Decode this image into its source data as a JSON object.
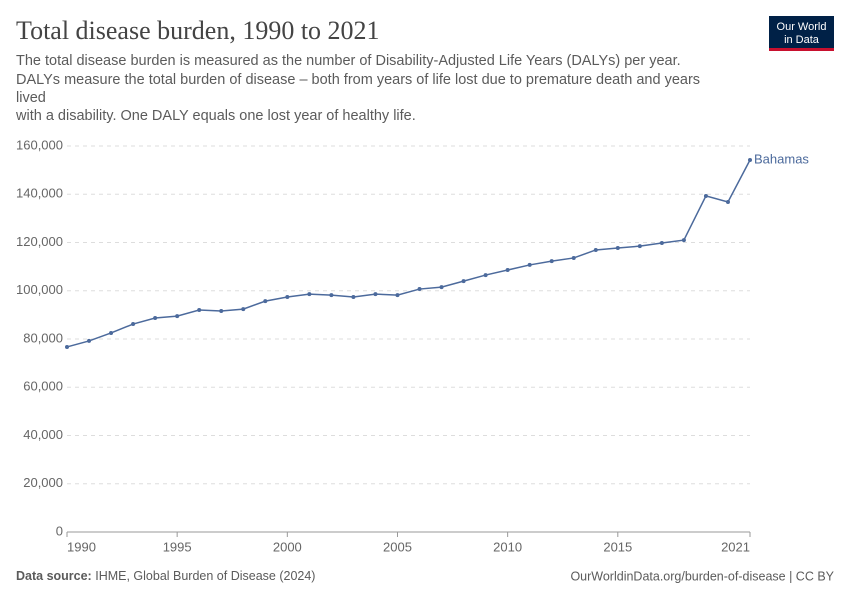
{
  "chart_data": {
    "type": "line",
    "title": "Total disease burden, 1990 to 2021",
    "subtitle": [
      "The total disease burden is measured as the number of Disability-Adjusted Life Years (DALYs) per year.",
      "DALYs measure the total burden of disease – both from years of life lost due to premature death and years",
      "lived",
      "with a disability. One DALY equals one lost year of healthy life."
    ],
    "x": [
      1990,
      1991,
      1992,
      1993,
      1994,
      1995,
      1996,
      1997,
      1998,
      1999,
      2000,
      2001,
      2002,
      2003,
      2004,
      2005,
      2006,
      2007,
      2008,
      2009,
      2010,
      2011,
      2012,
      2013,
      2014,
      2015,
      2016,
      2017,
      2018,
      2019,
      2020,
      2021
    ],
    "series": [
      {
        "name": "Bahamas",
        "color": "#4c6a9c",
        "values": [
          76700,
          79200,
          82500,
          86200,
          88700,
          89500,
          92000,
          91600,
          92400,
          95700,
          97400,
          98600,
          98200,
          97400,
          98600,
          98200,
          100700,
          101500,
          104000,
          106500,
          108600,
          110700,
          112300,
          113600,
          116900,
          117700,
          118500,
          119800,
          121000,
          139300,
          136800,
          154200
        ]
      }
    ],
    "xlim": [
      1990,
      2021
    ],
    "xticks": [
      1990,
      1995,
      2000,
      2005,
      2010,
      2015,
      2021
    ],
    "ylim": [
      0,
      160000
    ],
    "yticks": [
      0,
      {
        "value": 20000,
        "label": "20,000"
      },
      {
        "value": 40000,
        "label": "40,000"
      },
      {
        "value": 60000,
        "label": "60,000"
      },
      {
        "value": 80000,
        "label": "80,000"
      },
      {
        "value": 100000,
        "label": "100,000"
      },
      {
        "value": 120000,
        "label": "120,000"
      },
      {
        "value": 140000,
        "label": "140,000"
      },
      {
        "value": 160000,
        "label": "160,000"
      }
    ],
    "grid": true,
    "logo": [
      "Our World",
      "in Data"
    ],
    "source_label": "Data source:",
    "source": "IHME, Global Burden of Disease (2024)",
    "footer_right": "OurWorldinData.org/burden-of-disease | CC BY"
  }
}
